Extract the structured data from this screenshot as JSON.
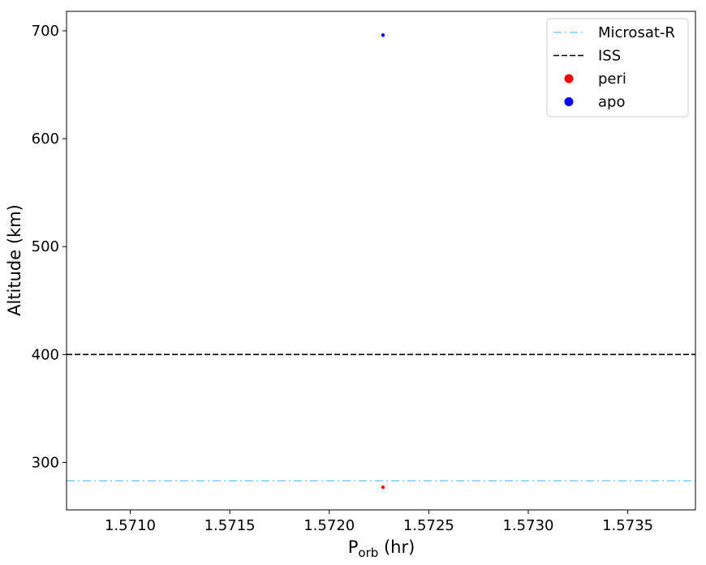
{
  "chart_data": {
    "type": "scatter",
    "title": "",
    "xlabel_main": "P",
    "xlabel_sub": "orb",
    "xlabel_unit": " (hr)",
    "ylabel": "Altitude (km)",
    "xlim": [
      1.57068,
      1.57384
    ],
    "ylim": [
      256,
      718
    ],
    "xticks": [
      {
        "value": 1.571,
        "label": "1.5710"
      },
      {
        "value": 1.5715,
        "label": "1.5715"
      },
      {
        "value": 1.572,
        "label": "1.5720"
      },
      {
        "value": 1.5725,
        "label": "1.5725"
      },
      {
        "value": 1.573,
        "label": "1.5730"
      },
      {
        "value": 1.5735,
        "label": "1.5735"
      }
    ],
    "yticks": [
      {
        "value": 300,
        "label": "300"
      },
      {
        "value": 400,
        "label": "400"
      },
      {
        "value": 500,
        "label": "500"
      },
      {
        "value": 600,
        "label": "600"
      },
      {
        "value": 700,
        "label": "700"
      }
    ],
    "hlines": [
      {
        "name": "Microsat-R",
        "y": 283,
        "color": "#87cefa",
        "style": "dashdot"
      },
      {
        "name": "ISS",
        "y": 400,
        "color": "#000000",
        "style": "dashed"
      }
    ],
    "series": [
      {
        "name": "peri",
        "color": "#ff0000",
        "points": [
          {
            "x": 1.57227,
            "y": 277
          }
        ]
      },
      {
        "name": "apo",
        "color": "#0000ff",
        "points": [
          {
            "x": 1.57227,
            "y": 696
          }
        ]
      }
    ],
    "legend": {
      "placement": "top-right",
      "entries": [
        {
          "label": "Microsat-R",
          "kind": "line",
          "color": "#87cefa",
          "style": "dashdot"
        },
        {
          "label": "ISS",
          "kind": "line",
          "color": "#000000",
          "style": "dashed"
        },
        {
          "label": "peri",
          "kind": "marker",
          "color": "#ff0000"
        },
        {
          "label": "apo",
          "kind": "marker",
          "color": "#0000ff"
        }
      ]
    },
    "grid": false
  }
}
